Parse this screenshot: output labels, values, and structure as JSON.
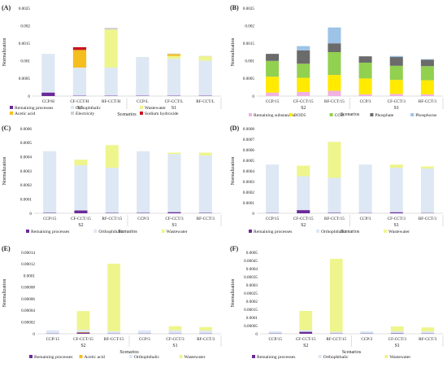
{
  "colors": {
    "Remaining processes": "#6b2a9a",
    "Remaining substances": "#f0b2e0",
    "Orthophthalic": "#dde8f4",
    "Wastewater": "#eef58c",
    "Acetic acid": "#f4be1e",
    "Electricity": "#cfcfcf",
    "Sodium hydroxide": "#c8141e",
    "BOD5": "#ffea00",
    "COD": "#92d050",
    "Phosphate": "#6b6b6b",
    "Phosphorus": "#9dc3e6"
  },
  "chart_data": [
    {
      "panel": "(A)",
      "type": "bar",
      "stacked": true,
      "ylabel": "Normalization",
      "xlabel": "Scenarios",
      "ylim": [
        0,
        0.0025
      ],
      "yticks": [
        "0",
        "0.0005",
        "0.001",
        "0.0015",
        "0.002",
        "0.0025"
      ],
      "categories": [
        "CCP/H",
        "CF-CCT/H",
        "RF-CCT/H",
        "CCP/L",
        "CF-CCT/L",
        "RF-CCT/L"
      ],
      "groups": [
        {
          "label": "S2",
          "from": 0,
          "to": 2
        },
        {
          "label": "S1",
          "from": 3,
          "to": 5
        }
      ],
      "series": [
        {
          "name": "Remaining processes",
          "values": [
            0.0001,
            1e-05,
            1e-05,
            1e-05,
            1e-05,
            1e-05
          ]
        },
        {
          "name": "Orthophthalic",
          "values": [
            0.0011,
            0.0008,
            0.0008,
            0.0011,
            0.00105,
            0.001
          ]
        },
        {
          "name": "Wastewater",
          "values": [
            0,
            0,
            0.00108,
            0,
            8e-05,
            0.00012
          ]
        },
        {
          "name": "Acetic acid",
          "values": [
            0,
            0.0005,
            0,
            0,
            5e-05,
            0
          ]
        },
        {
          "name": "Electricity",
          "values": [
            0,
            0,
            5e-05,
            0,
            2e-05,
            1e-05
          ]
        },
        {
          "name": "Sodium hydroxide",
          "values": [
            0,
            8e-05,
            0,
            0,
            0,
            0
          ]
        }
      ]
    },
    {
      "panel": "(B)",
      "type": "bar",
      "stacked": true,
      "ylabel": "Normalization",
      "xlabel": "Scenarios",
      "ylim": [
        0,
        0.0025
      ],
      "yticks": [
        "0",
        "0.0005",
        "0.001",
        "0.0015",
        "0.002",
        "0.0025"
      ],
      "categories": [
        "CCP/15",
        "CF-CCT/15",
        "RF-CCT/15",
        "CCP/3",
        "CF-CCT/3",
        "RF-CCT/3"
      ],
      "groups": [
        {
          "label": "S2",
          "from": 0,
          "to": 2
        },
        {
          "label": "S1",
          "from": 3,
          "to": 5
        }
      ],
      "series": [
        {
          "name": "Remaining substances",
          "values": [
            0.0001,
            0.00012,
            0.00015,
            5e-05,
            6e-05,
            5e-05
          ]
        },
        {
          "name": "BOD5",
          "values": [
            0.00045,
            0.0004,
            0.00045,
            0.00045,
            0.0004,
            0.0004
          ]
        },
        {
          "name": "COD",
          "values": [
            0.00045,
            0.0004,
            0.00065,
            0.00045,
            0.0004,
            0.0004
          ]
        },
        {
          "name": "Phosphate",
          "values": [
            0.0002,
            0.00038,
            0.00025,
            0.00018,
            0.00025,
            0.00018
          ]
        },
        {
          "name": "Phosphorus",
          "values": [
            0,
            0.00012,
            0.00045,
            0,
            3e-05,
            2e-05
          ]
        }
      ]
    },
    {
      "panel": "(C)",
      "type": "bar",
      "stacked": true,
      "ylabel": "Normalization",
      "xlabel": "Scenarios",
      "ylim": [
        0,
        0.0006
      ],
      "yticks": [
        "0",
        "0.0001",
        "0.0002",
        "0.0003",
        "0.0004",
        "0.0005",
        "0.0006"
      ],
      "categories": [
        "CCP/15",
        "CF-CCT/15",
        "RF-CCT/15",
        "CCP/3",
        "CF-CCT/3",
        "RF-CCT/3"
      ],
      "groups": [
        {
          "label": "S2",
          "from": 0,
          "to": 2
        },
        {
          "label": "S1",
          "from": 3,
          "to": 5
        }
      ],
      "series": [
        {
          "name": "Remaining processes",
          "values": [
            3e-06,
            2e-05,
            3e-06,
            3e-06,
            8e-06,
            3e-06
          ]
        },
        {
          "name": "Orthophthalic",
          "values": [
            0.000437,
            0.00032,
            0.00032,
            0.000437,
            0.000412,
            0.000407
          ]
        },
        {
          "name": "Wastewater",
          "values": [
            0,
            4e-05,
            0.00016,
            0,
            1e-05,
            2e-05
          ]
        }
      ]
    },
    {
      "panel": "(D)",
      "type": "bar",
      "stacked": true,
      "ylabel": "Normalization",
      "xlabel": "Scenarios",
      "ylim": [
        0,
        0.0008
      ],
      "yticks": [
        "0",
        "0.0001",
        "0.0002",
        "0.0003",
        "0.0004",
        "0.0005",
        "0.0006",
        "0.0007",
        "0.0008"
      ],
      "categories": [
        "CCP/15",
        "CF-CCT/15",
        "RF-CCT/15",
        "CCP/3",
        "CF-CCT/3",
        "RF-CCT/3"
      ],
      "groups": [
        {
          "label": "S2",
          "from": 0,
          "to": 2
        },
        {
          "label": "S1",
          "from": 3,
          "to": 5
        }
      ],
      "series": [
        {
          "name": "Remaining processes",
          "values": [
            3e-06,
            3e-05,
            5e-06,
            3e-06,
            1e-05,
            3e-06
          ]
        },
        {
          "name": "Orthophthalic",
          "values": [
            0.000457,
            0.00032,
            0.00033,
            0.000457,
            0.00042,
            0.00042
          ]
        },
        {
          "name": "Wastewater",
          "values": [
            0,
            0.0001,
            0.00034,
            0,
            3e-05,
            2e-05
          ]
        }
      ]
    },
    {
      "panel": "(E)",
      "type": "bar",
      "stacked": true,
      "ylabel": "Normalization",
      "xlabel": "Scenarios",
      "ylim": [
        0,
        0.00014
      ],
      "yticks": [
        "0",
        "0.00002",
        "0.00004",
        "0.00006",
        "0.00008",
        "0.0001",
        "0.00012",
        "0.00014"
      ],
      "categories": [
        "CCP/15",
        "CF-CCT/15",
        "RF-CCT/15",
        "CCP/3",
        "CF-CCT/3",
        "RF-CCT/3"
      ],
      "groups": [
        {
          "label": "S2",
          "from": 0,
          "to": 2
        },
        {
          "label": "S1",
          "from": 3,
          "to": 5
        }
      ],
      "series": [
        {
          "name": "Remaining processes",
          "values": [
            5e-07,
            2e-06,
            5e-07,
            5e-07,
            5e-07,
            5e-07
          ]
        },
        {
          "name": "Acetic acid",
          "values": [
            0,
            1e-06,
            0,
            0,
            0,
            0
          ]
        },
        {
          "name": "Orthophthalic",
          "values": [
            5.5e-06,
            4e-06,
            4e-06,
            5.5e-06,
            5.5e-06,
            5e-06
          ]
        },
        {
          "name": "Wastewater",
          "values": [
            0,
            3.2e-05,
            0.000116,
            0,
            7e-06,
            6e-06
          ]
        }
      ]
    },
    {
      "panel": "(F)",
      "type": "bar",
      "stacked": true,
      "ylabel": "Normalization",
      "xlabel": "Scenarios",
      "ylim": [
        0,
        0.0005
      ],
      "yticks": [
        "0",
        "0.00005",
        "0.0001",
        "0.00015",
        "0.0002",
        "0.00025",
        "0.0003",
        "0.00035",
        "0.0004",
        "0.00045",
        "0.0005"
      ],
      "categories": [
        "CCP/15",
        "CF-CCT/15",
        "RF-CCT/15",
        "CCP/3",
        "CF-CCT/3",
        "RF-CCT/3"
      ],
      "groups": [
        {
          "label": "S2",
          "from": 0,
          "to": 2
        },
        {
          "label": "S1",
          "from": 3,
          "to": 5
        }
      ],
      "series": [
        {
          "name": "Remaining processes",
          "values": [
            2e-06,
            1.2e-05,
            2e-06,
            2e-06,
            3e-06,
            2e-06
          ]
        },
        {
          "name": "Orthophthalic",
          "values": [
            1.3e-05,
            1e-05,
            1e-05,
            1.3e-05,
            1.2e-05,
            1.2e-05
          ]
        },
        {
          "name": "Wastewater",
          "values": [
            0,
            0.000118,
            0.000448,
            0,
            3e-05,
            2.5e-05
          ]
        }
      ]
    }
  ]
}
